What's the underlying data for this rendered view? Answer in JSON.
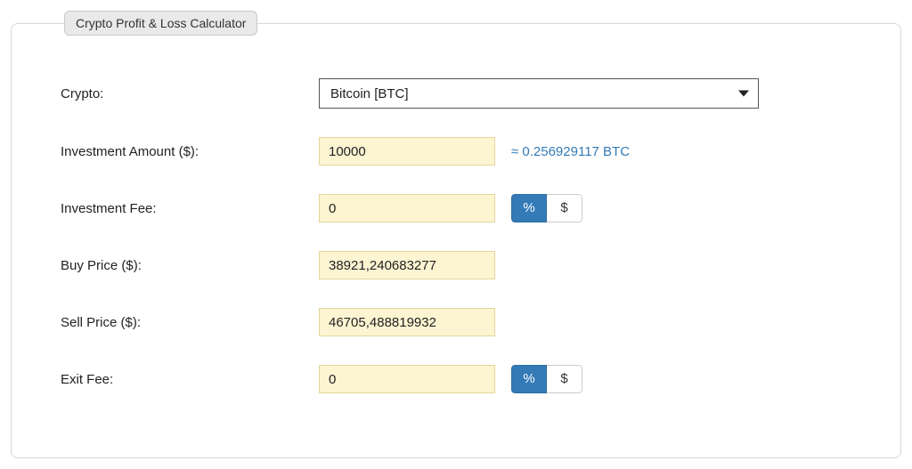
{
  "panel": {
    "title": "Crypto Profit & Loss Calculator"
  },
  "labels": {
    "crypto": "Crypto:",
    "investment_amount": "Investment Amount ($):",
    "investment_fee": "Investment Fee:",
    "buy_price": "Buy Price ($):",
    "sell_price": "Sell Price ($):",
    "exit_fee": "Exit Fee:"
  },
  "fields": {
    "crypto_selected": "Bitcoin [BTC]",
    "investment_amount": "10000",
    "investment_fee": "0",
    "buy_price": "38921,240683277",
    "sell_price": "46705,488819932",
    "exit_fee": "0"
  },
  "conversion": {
    "text": "≈ 0.256929117 BTC"
  },
  "toggles": {
    "investment_fee": {
      "percent": "%",
      "dollar": "$",
      "active": "percent"
    },
    "exit_fee": {
      "percent": "%",
      "dollar": "$",
      "active": "percent"
    }
  },
  "style": {
    "input_bg": "#fdf4d2",
    "input_border": "#e2d69a",
    "toggle_active_bg": "#337ab7",
    "toggle_active_border": "#2e6da4",
    "link_color": "#337ab7",
    "panel_border": "#d6d6d6",
    "legend_bg": "#e9e9e9",
    "text_color": "#222222",
    "page_bg": "#ffffff",
    "fontsize_label": 15,
    "fontsize_legend": 14
  }
}
